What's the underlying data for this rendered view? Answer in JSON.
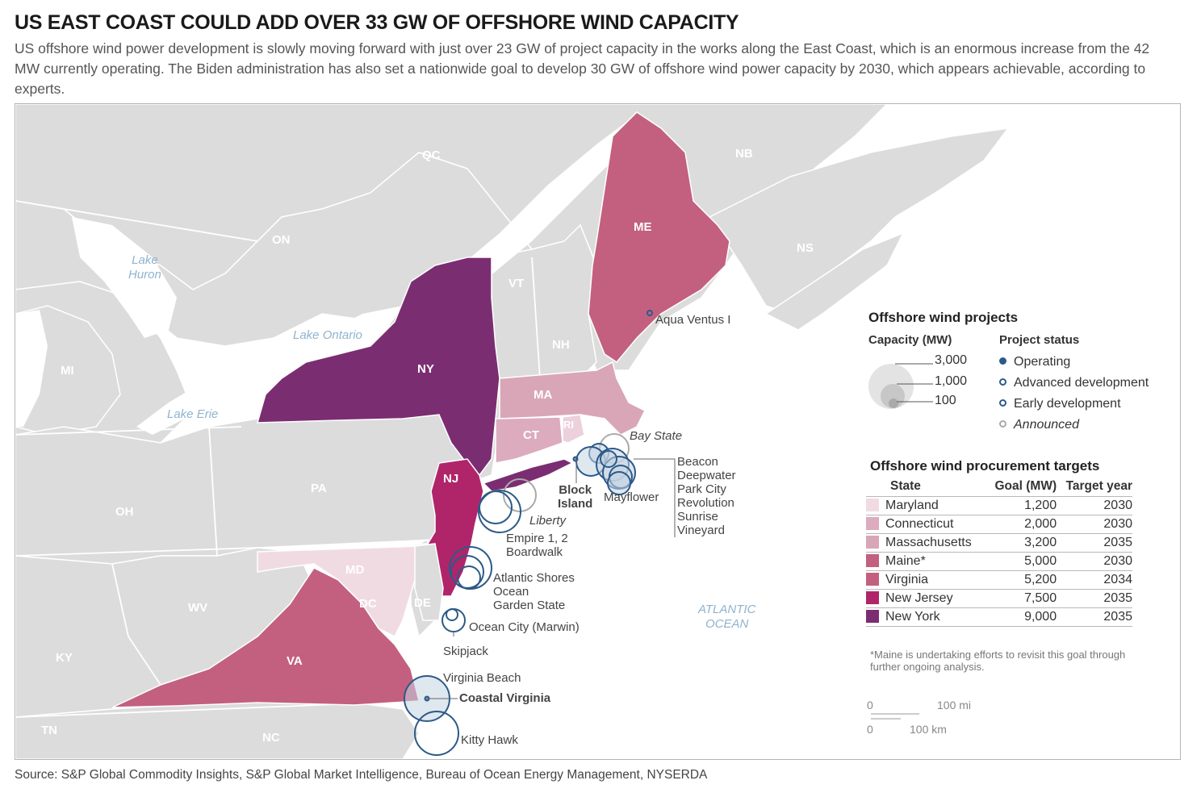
{
  "header": {
    "title": "US EAST COAST COULD ADD OVER 33 GW OF OFFSHORE WIND CAPACITY",
    "subtitle": "US offshore wind power development is slowly moving forward with just over 23 GW of project capacity in the works along the East Coast, which is an enormous increase from the 42 MW currently operating. The Biden administration has also set a nationwide goal to develop 30 GW of offshore wind power capacity by 2030, which appears achievable, according to experts."
  },
  "colors": {
    "land": "#dcdcdd",
    "water": "#ffffff",
    "ny": "#7b2d72",
    "nj": "#b0256a",
    "me_va": "#c3607f",
    "ma": "#d9a6b8",
    "ct": "#dcabbe",
    "md": "#f1dbe3",
    "project_stroke": "#2c5a88",
    "project_fill": "#c5d3e2"
  },
  "map": {
    "provinces": {
      "qc": "QC",
      "on": "ON",
      "nb": "NB",
      "ns": "NS"
    },
    "states": {
      "mi": "MI",
      "oh": "OH",
      "pa": "PA",
      "wv": "WV",
      "ky": "KY",
      "tn": "TN",
      "nc": "NC",
      "vt": "VT",
      "nh": "NH",
      "me": "ME",
      "ny": "NY",
      "ma": "MA",
      "ct": "CT",
      "ri": "RI",
      "nj": "NJ",
      "md": "MD",
      "de": "DE",
      "dc": "DC",
      "va": "VA"
    },
    "water": {
      "huron_1": "Lake",
      "huron_2": "Huron",
      "ontario": "Lake Ontario",
      "erie": "Lake Erie",
      "atlantic_1": "ATLANTIC",
      "atlantic_2": "OCEAN"
    },
    "projects": {
      "aqua_ventus": "Aqua Ventus I",
      "bay_state": "Bay State",
      "ne_list": [
        "Beacon",
        "Deepwater",
        "Park City",
        "Revolution",
        "Sunrise",
        "Vineyard"
      ],
      "mayflower": "Mayflower",
      "block_island_1": "Block",
      "block_island_2": "Island",
      "liberty": "Liberty",
      "empire_1": "Empire 1, 2",
      "empire_2": "Boardwalk",
      "nj_list": [
        "Atlantic Shores",
        "Ocean",
        "Garden State"
      ],
      "ocean_city": "Ocean City (Marwin)",
      "skipjack": "Skipjack",
      "va_beach": "Virginia Beach",
      "coastal_va": "Coastal Virginia",
      "kitty_hawk": "Kitty Hawk"
    }
  },
  "legend": {
    "title": "Offshore wind projects",
    "capacity_label": "Capacity (MW)",
    "capacity_values": [
      "3,000",
      "1,000",
      "100"
    ],
    "status_label": "Project status",
    "statuses": [
      {
        "label": "Operating",
        "style": "filled"
      },
      {
        "label": "Advanced development",
        "style": "ring"
      },
      {
        "label": "Early development",
        "style": "ring"
      },
      {
        "label": "Announced",
        "style": "grey-ring"
      }
    ]
  },
  "targets": {
    "title": "Offshore wind procurement targets",
    "columns": [
      "State",
      "Goal (MW)",
      "Target year"
    ],
    "rows": [
      {
        "state": "Maryland",
        "goal": "1,200",
        "year": "2030",
        "color": "#f1dbe3"
      },
      {
        "state": "Connecticut",
        "goal": "2,000",
        "year": "2030",
        "color": "#dcabbe"
      },
      {
        "state": "Massachusetts",
        "goal": "3,200",
        "year": "2035",
        "color": "#d9a6b8"
      },
      {
        "state": "Maine*",
        "goal": "5,000",
        "year": "2030",
        "color": "#c3607f"
      },
      {
        "state": "Virginia",
        "goal": "5,200",
        "year": "2034",
        "color": "#c3607f"
      },
      {
        "state": "New Jersey",
        "goal": "7,500",
        "year": "2035",
        "color": "#b0256a"
      },
      {
        "state": "New York",
        "goal": "9,000",
        "year": "2035",
        "color": "#7b2d72"
      }
    ],
    "note": "*Maine is undertaking efforts to revisit this goal through further ongoing analysis."
  },
  "scale": {
    "mi_zero": "0",
    "mi_label": "100 mi",
    "km_zero": "0",
    "km_label": "100 km"
  },
  "source": "Source: S&P Global Commodity Insights, S&P Global Market Intelligence, Bureau of Ocean Energy Management, NYSERDA"
}
